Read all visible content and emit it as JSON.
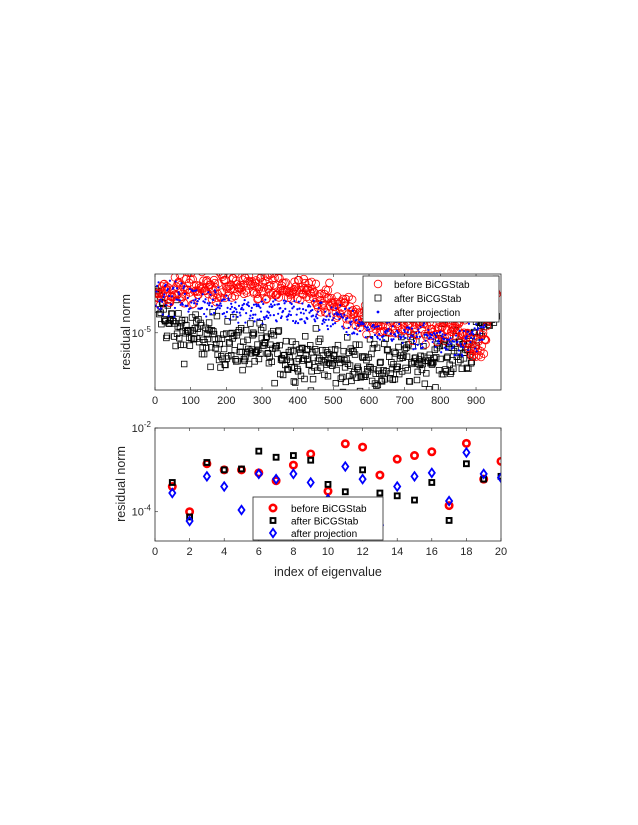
{
  "chart_data": [
    {
      "type": "scatter",
      "ylabel": "residual norm",
      "xlabel": "",
      "xlim": [
        0,
        970
      ],
      "x_ticks": [
        "0",
        "100",
        "200",
        "300",
        "400",
        "500",
        "600",
        "700",
        "800",
        "900"
      ],
      "x_tick_values": [
        0,
        100,
        200,
        300,
        400,
        500,
        600,
        700,
        800,
        900
      ],
      "ylim": [
        1.6e-07,
        0.0007
      ],
      "yscale": "log",
      "y_tick_label": {
        "base": "10",
        "exp": "-5"
      },
      "y_tick_value": 1e-05,
      "legend_position": "top-right",
      "series": [
        {
          "name": "before BiCGStab",
          "marker": "circle",
          "color": "#ff0000",
          "trend": [
            [
              0,
              0.00015
            ],
            [
              50,
              0.00022
            ],
            [
              150,
              0.00025
            ],
            [
              300,
              0.00026
            ],
            [
              450,
              0.00016
            ],
            [
              520,
              6e-05
            ],
            [
              620,
              2.5e-05
            ],
            [
              750,
              1.6e-05
            ],
            [
              850,
              1.2e-05
            ],
            [
              900,
              3e-06
            ],
            [
              925,
              6e-06
            ],
            [
              945,
              0.00013
            ],
            [
              960,
              0.00025
            ]
          ],
          "spread": 3.0,
          "count": 480
        },
        {
          "name": "after BiCGStab",
          "marker": "square",
          "color": "#000000",
          "trend": [
            [
              0,
              0.0001
            ],
            [
              50,
              1.5e-05
            ],
            [
              150,
              6e-06
            ],
            [
              300,
              3e-06
            ],
            [
              450,
              1.5e-06
            ],
            [
              550,
              1e-06
            ],
            [
              700,
              1.2e-06
            ],
            [
              820,
              2e-06
            ],
            [
              880,
              3e-06
            ],
            [
              920,
              2e-05
            ],
            [
              960,
              0.00013
            ]
          ],
          "spread": 6.0,
          "count": 480
        },
        {
          "name": "after projection",
          "marker": "dot",
          "color": "#0000ff",
          "trend": [
            [
              0,
              0.00015
            ],
            [
              100,
              0.00011
            ],
            [
              200,
              7e-05
            ],
            [
              300,
              5e-05
            ],
            [
              450,
              4e-05
            ],
            [
              550,
              2e-05
            ],
            [
              650,
              1.2e-05
            ],
            [
              750,
              8e-06
            ],
            [
              850,
              5e-06
            ],
            [
              900,
              8e-06
            ],
            [
              930,
              3e-05
            ],
            [
              960,
              0.0002
            ]
          ],
          "spread": 3.0,
          "count": 480
        }
      ]
    },
    {
      "type": "scatter",
      "ylabel": "residual norm",
      "xlabel": "index of eigenvalue",
      "xlim": [
        0,
        20
      ],
      "x_ticks": [
        "0",
        "2",
        "4",
        "6",
        "8",
        "10",
        "12",
        "14",
        "16",
        "18",
        "20"
      ],
      "x_tick_values": [
        0,
        2,
        4,
        6,
        8,
        10,
        12,
        14,
        16,
        18,
        20
      ],
      "ylim": [
        2e-05,
        0.01
      ],
      "yscale": "log",
      "y_ticks": [
        {
          "value": 0.01,
          "base": "10",
          "exp": "-2"
        },
        {
          "value": 0.0001,
          "base": "10",
          "exp": "-4"
        }
      ],
      "legend_position": "bottom-center",
      "x": [
        1,
        2,
        3,
        4,
        5,
        6,
        7,
        8,
        9,
        10,
        11,
        12,
        13,
        14,
        15,
        16,
        17,
        18,
        19,
        20
      ],
      "series": [
        {
          "name": "before BiCGStab",
          "marker": "circle",
          "color": "#ff0000",
          "values": [
            0.0004,
            0.0001,
            0.0014,
            0.001,
            0.001,
            0.00085,
            0.00055,
            0.0013,
            0.0024,
            0.00031,
            0.0042,
            0.0035,
            0.00075,
            0.0018,
            0.0022,
            0.0027,
            0.00014,
            0.0043,
            0.0006,
            0.0016
          ]
        },
        {
          "name": "after BiCGStab",
          "marker": "square",
          "color": "#000000",
          "values": [
            0.0005,
            7.5e-05,
            0.0015,
            0.001,
            0.00105,
            0.0028,
            0.002,
            0.0022,
            0.0017,
            0.00045,
            0.0003,
            0.001,
            0.00028,
            0.00024,
            0.00019,
            0.0005,
            6.2e-05,
            0.0014,
            0.0006,
            0.0007
          ]
        },
        {
          "name": "after projection",
          "marker": "diamond",
          "color": "#0000ff",
          "values": [
            0.00028,
            6e-05,
            0.0007,
            0.0004,
            0.00011,
            0.0008,
            0.0006,
            0.0008,
            0.0005,
            0.0002,
            0.0012,
            0.0006,
            4.8e-05,
            0.0004,
            0.0007,
            0.00085,
            0.00018,
            0.0026,
            0.0008,
            0.00065
          ]
        }
      ]
    }
  ]
}
